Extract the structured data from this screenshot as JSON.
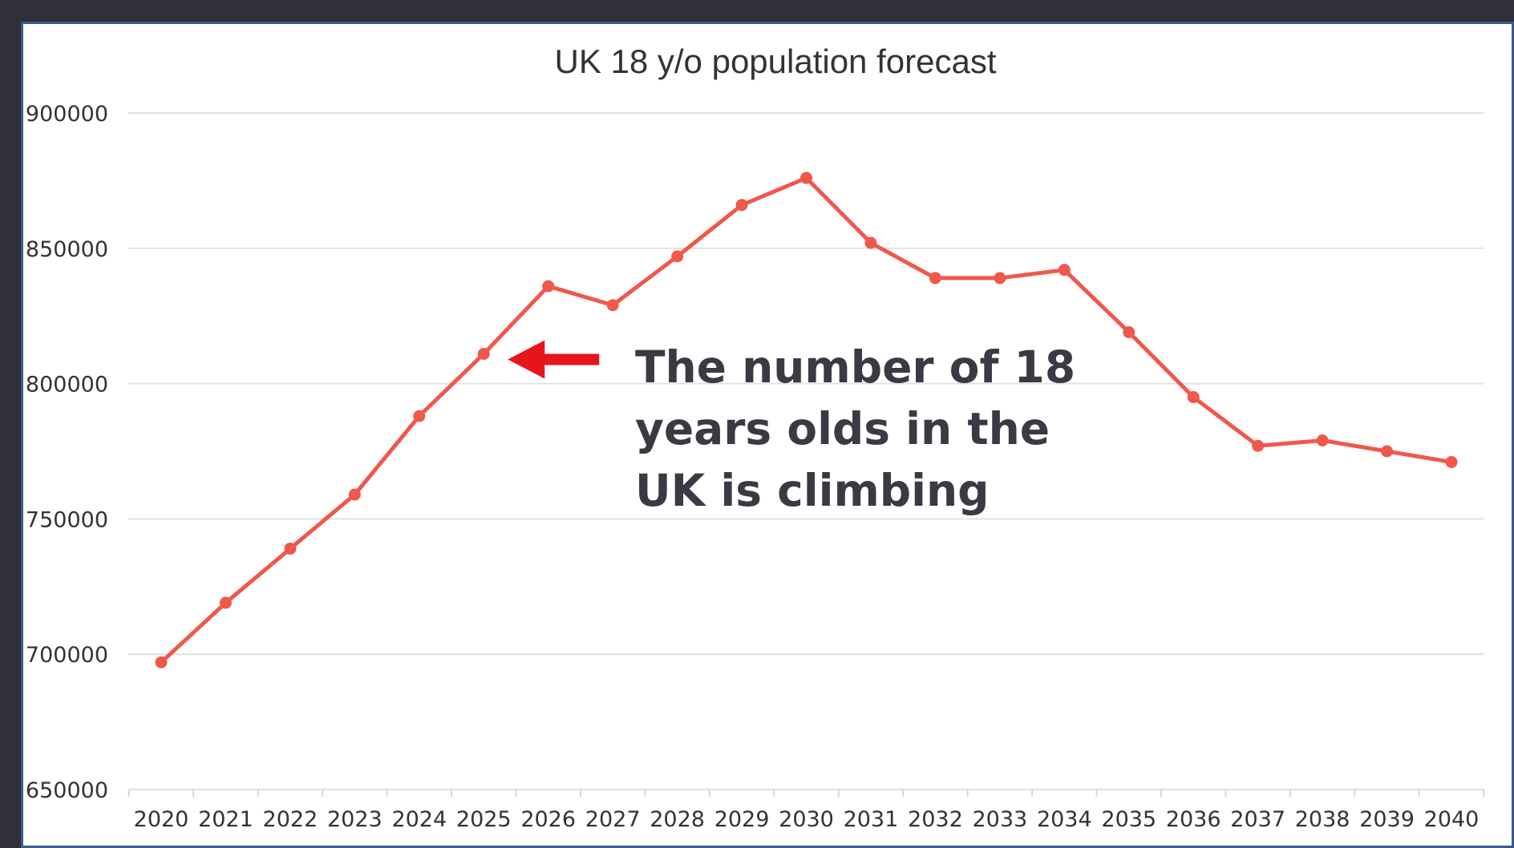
{
  "chart_data": {
    "type": "line",
    "title": "UK 18 y/o population forecast",
    "xlabel": "",
    "ylabel": "",
    "categories": [
      "2020",
      "2021",
      "2022",
      "2023",
      "2024",
      "2025",
      "2026",
      "2027",
      "2028",
      "2029",
      "2030",
      "2031",
      "2032",
      "2033",
      "2034",
      "2035",
      "2036",
      "2037",
      "2038",
      "2039",
      "2040"
    ],
    "series": [
      {
        "values": [
          697000,
          719000,
          739000,
          759000,
          788000,
          811000,
          836000,
          829000,
          847000,
          866000,
          876000,
          852000,
          839000,
          839000,
          842000,
          819000,
          795000,
          777000,
          779000,
          775000,
          771000
        ]
      }
    ],
    "ylim": [
      650000,
      900000
    ],
    "yticks": [
      "900000",
      "850000",
      "800000",
      "750000",
      "700000",
      "650000"
    ],
    "grid": true,
    "legend": "none",
    "line_color": "#f0584c",
    "annotation": {
      "text": "The number of 18 years olds in the UK is climbing",
      "arrow_color": "#e8141b",
      "points_to": "2025"
    }
  }
}
